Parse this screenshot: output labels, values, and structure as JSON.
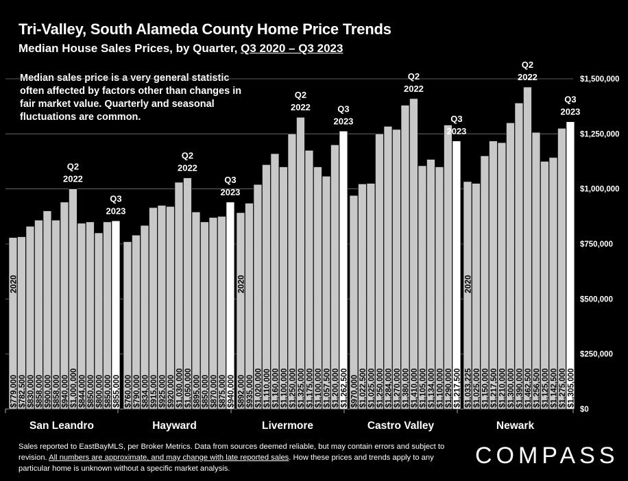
{
  "header": {
    "title": "Tri-Valley, South Alameda County Home Price Trends",
    "subtitle_prefix": "Median House Sales Prices, by Quarter, ",
    "subtitle_range": "Q3 2020 – Q3 2023"
  },
  "note": "Median sales price is a very general statistic often affected by factors other than changes in fair market value. Quarterly and seasonal fluctuations are common.",
  "footer": {
    "line1": "Sales reported to EastBayMLS, per Broker Metrics. Data from sources deemed reliable, but may contain errors and subject to revision. ",
    "underlined": "All numbers are approximate, and may change with late reported sales",
    "line2": ". How these prices and trends apply to any particular home is unknown without a specific market analysis."
  },
  "logo": "COMPASS",
  "colors": {
    "background": "#000000",
    "bar": "#c8c8c8",
    "bar_highlight": "#ffffff",
    "grid": "#7a7a7a"
  },
  "chart_data": {
    "type": "bar",
    "ylim": [
      0,
      1500000
    ],
    "yticks": [
      0,
      250000,
      500000,
      750000,
      1000000,
      1250000,
      1500000
    ],
    "ytick_labels": [
      "$0",
      "$250,000",
      "$500,000",
      "$750,000",
      "$1,000,000",
      "$1,250,000",
      "$1,500,000"
    ],
    "year_label": "2020",
    "groups": [
      {
        "name": "San Leandro",
        "values": [
          779000,
          782500,
          830000,
          858000,
          900000,
          858000,
          940000,
          1000000,
          844000,
          850000,
          800000,
          850000,
          855000
        ],
        "labels": [
          "$779,000",
          "$782,500",
          "$830,000",
          "$858,000",
          "$900,000",
          "$858,000",
          "$940,000",
          "$1,000,000",
          "$844,000",
          "$850,000",
          "$800,000",
          "$850,000",
          "$855,000"
        ],
        "peak_index": 7,
        "peak_label": [
          "Q2",
          "2022"
        ],
        "last_label": [
          "Q3",
          "2023"
        ],
        "show_year": true
      },
      {
        "name": "Hayward",
        "values": [
          760000,
          790000,
          834000,
          915000,
          925000,
          920000,
          1030000,
          1050000,
          895000,
          850000,
          870000,
          875000,
          940000
        ],
        "labels": [
          "$760,000",
          "$790,000",
          "$834,000",
          "$915,000",
          "$925,000",
          "$920,000",
          "$1,030,000",
          "$1,050,000",
          "$895,000",
          "$850,000",
          "$870,000",
          "$875,000",
          "$940,000"
        ],
        "peak_index": 7,
        "peak_label": [
          "Q2",
          "2022"
        ],
        "last_label": [
          "Q3",
          "2023"
        ],
        "show_year": false
      },
      {
        "name": "Livermore",
        "values": [
          892000,
          935000,
          1020000,
          1110000,
          1160000,
          1100000,
          1250000,
          1325000,
          1175000,
          1100000,
          1057500,
          1200000,
          1262500
        ],
        "labels": [
          "$892,000",
          "$935,000",
          "$1,020,000",
          "$1,110,000",
          "$1,160,000",
          "$1,100,000",
          "$1,250,000",
          "$1,325,000",
          "$1,175,000",
          "$1,100,000",
          "$1,057,500",
          "$1,200,000",
          "$1,262,500"
        ],
        "peak_index": 7,
        "peak_label": [
          "Q2",
          "2022"
        ],
        "last_label": [
          "Q3",
          "2023"
        ],
        "show_year": true
      },
      {
        "name": "Castro Valley",
        "values": [
          970000,
          1022500,
          1025000,
          1250000,
          1284000,
          1270000,
          1380000,
          1410000,
          1105000,
          1134000,
          1100000,
          1290000,
          1217500
        ],
        "labels": [
          "$970,000",
          "$1,022,500",
          "$1,025,000",
          "$1,250,000",
          "$1,284,000",
          "$1,270,000",
          "$1,380,000",
          "$1,410,000",
          "$1,105,000",
          "$1,134,000",
          "$1,100,000",
          "$1,290,000",
          "$1,217,500"
        ],
        "peak_index": 7,
        "peak_label": [
          "Q2",
          "2022"
        ],
        "last_label": [
          "Q3",
          "2023"
        ],
        "show_year": false
      },
      {
        "name": "Newark",
        "values": [
          1033225,
          1025000,
          1150000,
          1217500,
          1210000,
          1300000,
          1390000,
          1462500,
          1256500,
          1125000,
          1142500,
          1275000,
          1305000
        ],
        "labels": [
          "$1,033,225",
          "$1,025,000",
          "$1,150,000",
          "$1,217,500",
          "$1,210,000",
          "$1,300,000",
          "$1,390,000",
          "$1,462,500",
          "$1,256,500",
          "$1,125,000",
          "$1,142,500",
          "$1,275,000",
          "$1,305,000"
        ],
        "peak_index": 7,
        "peak_label": [
          "Q2",
          "2022"
        ],
        "last_label": [
          "Q3",
          "2023"
        ],
        "show_year": true
      }
    ]
  }
}
